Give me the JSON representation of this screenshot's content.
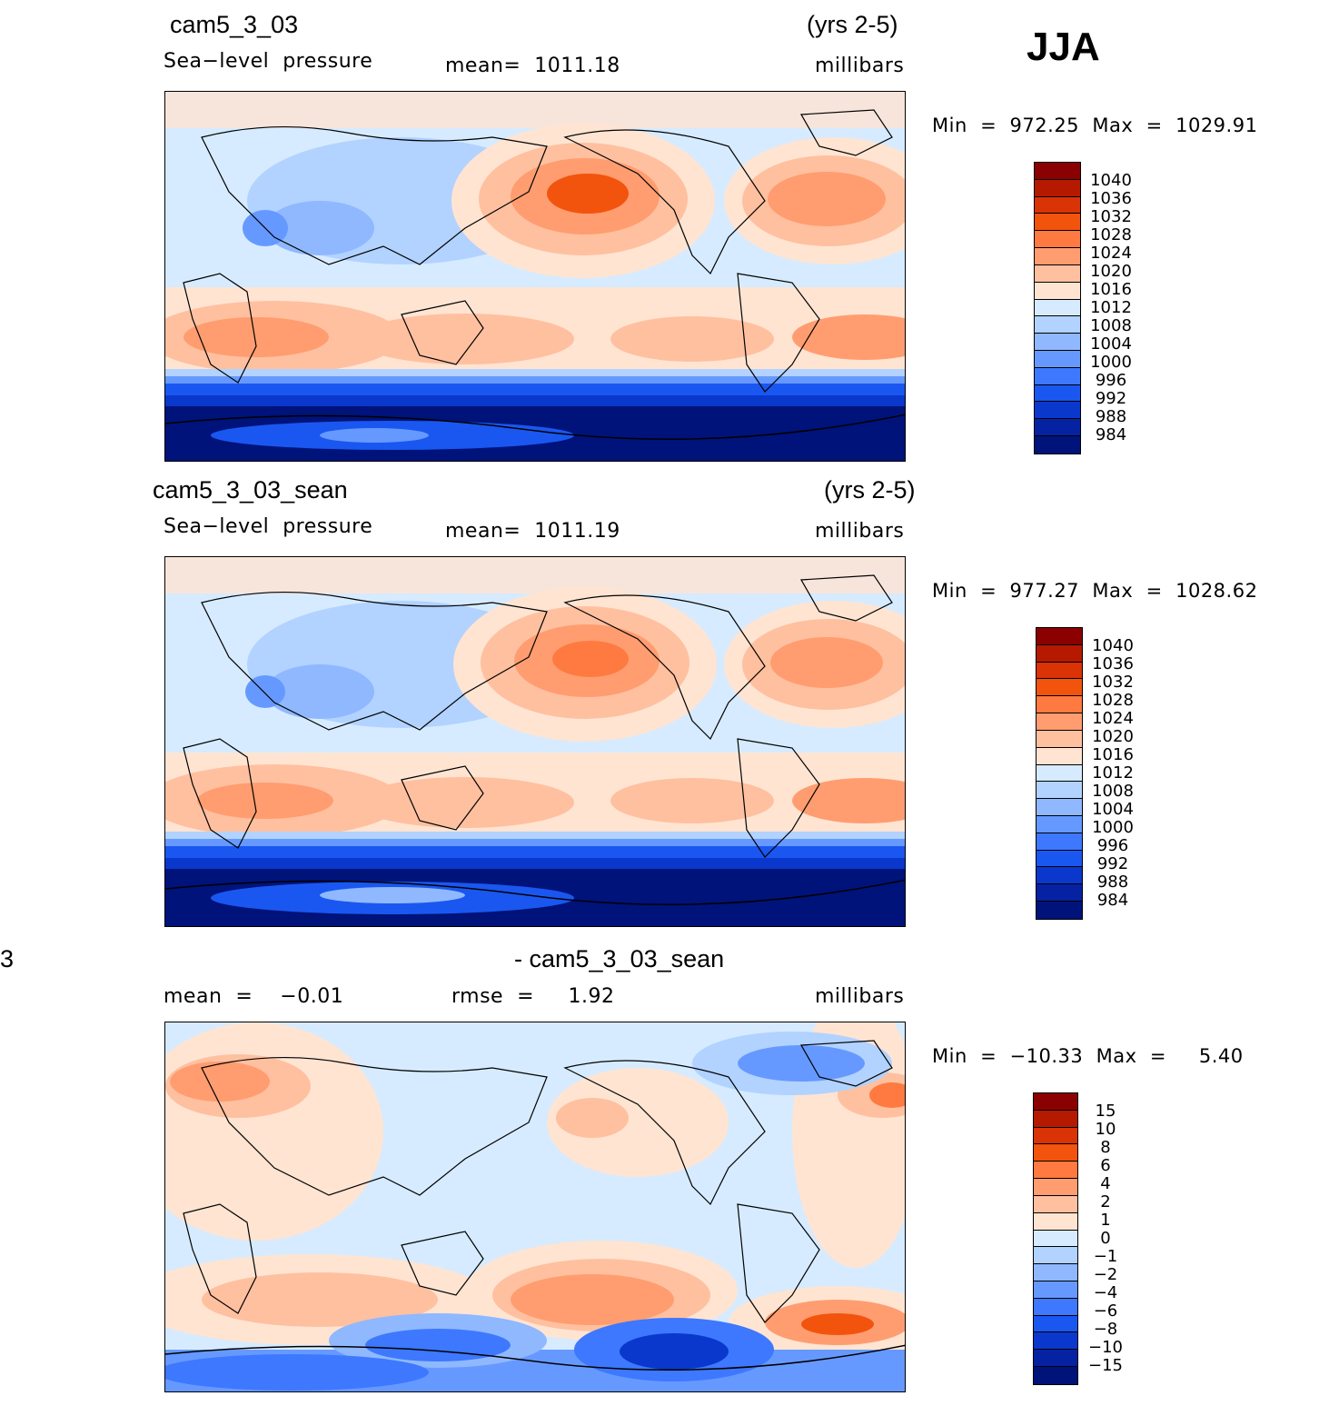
{
  "season": "JJA",
  "stray_mark": "3",
  "panel1": {
    "case": "cam5_3_03",
    "years": "(yrs 2-5)",
    "variable": "Sea−level  pressure",
    "mean": "mean=  1011.18",
    "units": "millibars",
    "minmax": "Min  =  972.25  Max  =  1029.91"
  },
  "panel2": {
    "case": "cam5_3_03_sean",
    "years": "(yrs 2-5)",
    "variable": "Sea−level  pressure",
    "mean": "mean=  1011.19",
    "units": "millibars",
    "minmax": "Min  =  977.27  Max  =  1028.62"
  },
  "panel3": {
    "case": "- cam5_3_03_sean",
    "mean": "mean  =    −0.01",
    "rmse": "rmse  =     1.92",
    "units": "millibars",
    "minmax": "Min  =  −10.33  Max  =     5.40"
  },
  "colorbar_colors": [
    "#8b0000",
    "#b51a00",
    "#d93306",
    "#f2540d",
    "#ff7a40",
    "#ff9d70",
    "#ffc0a0",
    "#ffe4d2",
    "#d6ebff",
    "#b2d2ff",
    "#8fb8ff",
    "#6699ff",
    "#3d78ff",
    "#1a57f0",
    "#0a38cc",
    "#0522a3",
    "#00137a"
  ],
  "colorbar1_labels": [
    "1040",
    "1036",
    "1032",
    "1028",
    "1024",
    "1020",
    "1016",
    "1012",
    "1008",
    "1004",
    "1000",
    "996",
    "992",
    "988",
    "984"
  ],
  "colorbar2_labels": [
    "1040",
    "1036",
    "1032",
    "1028",
    "1024",
    "1020",
    "1016",
    "1012",
    "1008",
    "1004",
    "1000",
    "996",
    "992",
    "988",
    "984"
  ],
  "colorbar3_labels": [
    "15",
    "10",
    "8",
    "6",
    "4",
    "2",
    "1",
    "0",
    "−1",
    "−2",
    "−4",
    "−6",
    "−8",
    "−10",
    "−15"
  ]
}
